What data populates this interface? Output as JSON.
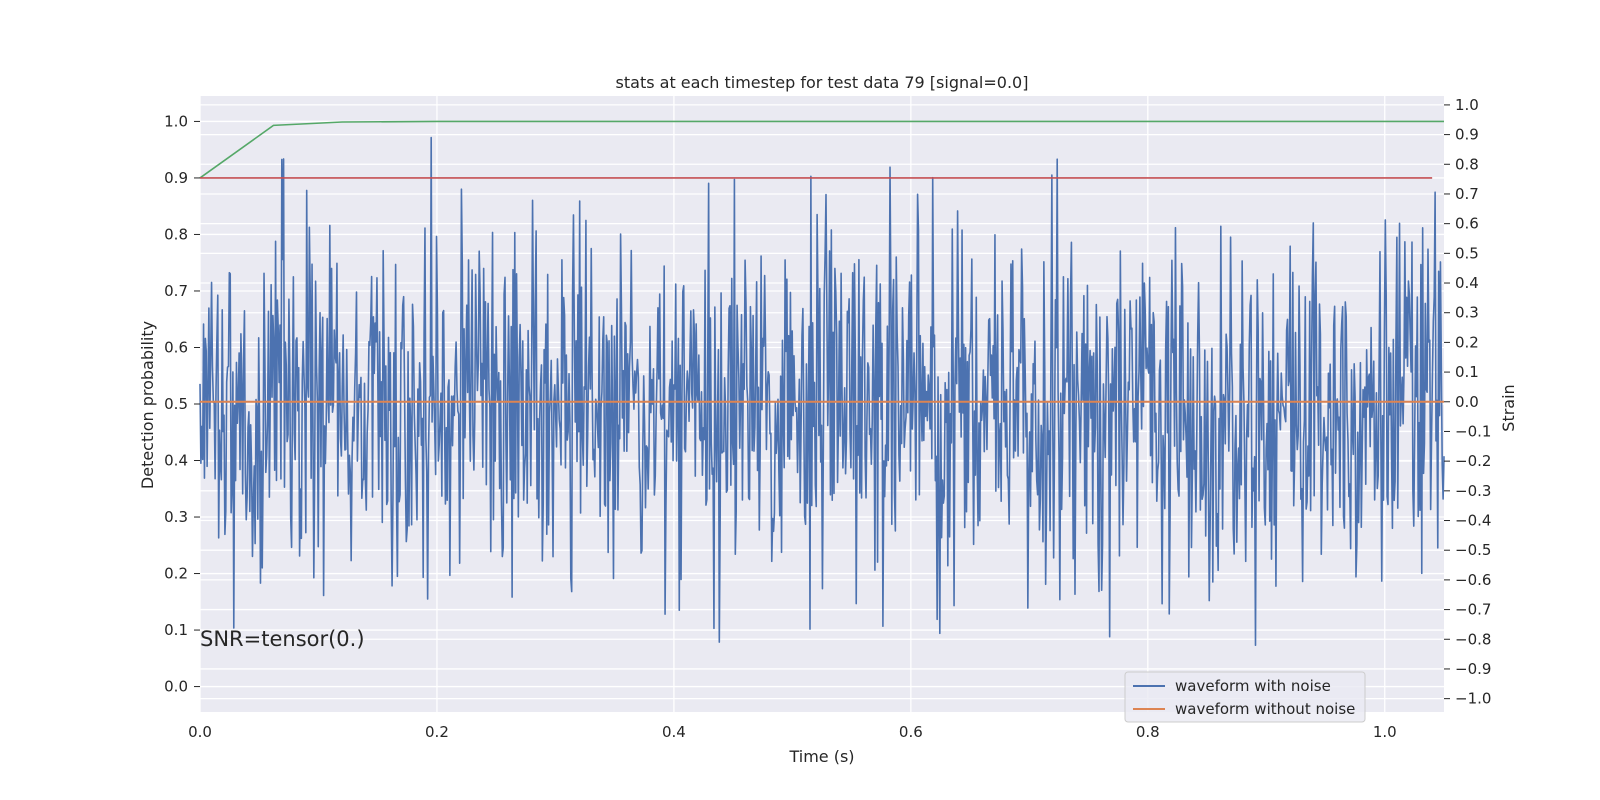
{
  "chart_data": {
    "type": "line",
    "title": "stats at each timestep for test data 79 [signal=0.0]",
    "xlabel": "Time (s)",
    "ylabel_left": "Detection probability",
    "ylabel_right": "Strain",
    "xlim": [
      0.0,
      1.05
    ],
    "ylim_left": [
      -0.045,
      1.045
    ],
    "ylim_right": [
      -1.045,
      1.03
    ],
    "x_ticks": [
      "0.0",
      "0.2",
      "0.4",
      "0.6",
      "0.8",
      "1.0"
    ],
    "x_tick_values": [
      0.0,
      0.2,
      0.4,
      0.6,
      0.8,
      1.0
    ],
    "y_left_ticks": [
      "0.0",
      "0.1",
      "0.2",
      "0.3",
      "0.4",
      "0.5",
      "0.6",
      "0.7",
      "0.8",
      "0.9",
      "1.0"
    ],
    "y_left_tick_values": [
      0.0,
      0.1,
      0.2,
      0.3,
      0.4,
      0.5,
      0.6,
      0.7,
      0.8,
      0.9,
      1.0
    ],
    "y_right_ticks": [
      "−1.0",
      "−0.9",
      "−0.8",
      "−0.7",
      "−0.6",
      "−0.5",
      "−0.4",
      "−0.3",
      "−0.2",
      "−0.1",
      "0.0",
      "0.1",
      "0.2",
      "0.3",
      "0.4",
      "0.5",
      "0.6",
      "0.7",
      "0.8",
      "0.9",
      "1.0"
    ],
    "y_right_tick_values": [
      -1.0,
      -0.9,
      -0.8,
      -0.7,
      -0.6,
      -0.5,
      -0.4,
      -0.3,
      -0.2,
      -0.1,
      0.0,
      0.1,
      0.2,
      0.3,
      0.4,
      0.5,
      0.6,
      0.7,
      0.8,
      0.9,
      1.0
    ],
    "grid": true,
    "legend_position": "lower-right",
    "annotation": "SNR=tensor(0.)",
    "series": [
      {
        "name": "waveform with noise",
        "axis": "right",
        "color": "#4c72b0",
        "description": "dense noise centered on 0.0, range roughly -0.82 to 0.89",
        "x_range": [
          0.0,
          1.05
        ],
        "n_points": 1400,
        "mean": 0.0,
        "std": 0.3,
        "min": -0.82,
        "max": 0.89
      },
      {
        "name": "waveform without noise",
        "axis": "right",
        "color": "#dd8452",
        "x": [
          0.0,
          1.05
        ],
        "y": [
          0.0,
          0.0
        ]
      },
      {
        "axis": "left",
        "color": "#55a868",
        "x": [
          0.0,
          0.062,
          0.12,
          0.2,
          1.05
        ],
        "y": [
          0.9,
          0.993,
          0.999,
          1.0,
          1.0
        ]
      },
      {
        "axis": "left",
        "color": "#c44e52",
        "x": [
          0.0,
          1.04
        ],
        "y": [
          0.9,
          0.9
        ]
      }
    ]
  },
  "colors": {
    "plot_background": "#eaeaf2",
    "grid": "#ffffff"
  }
}
